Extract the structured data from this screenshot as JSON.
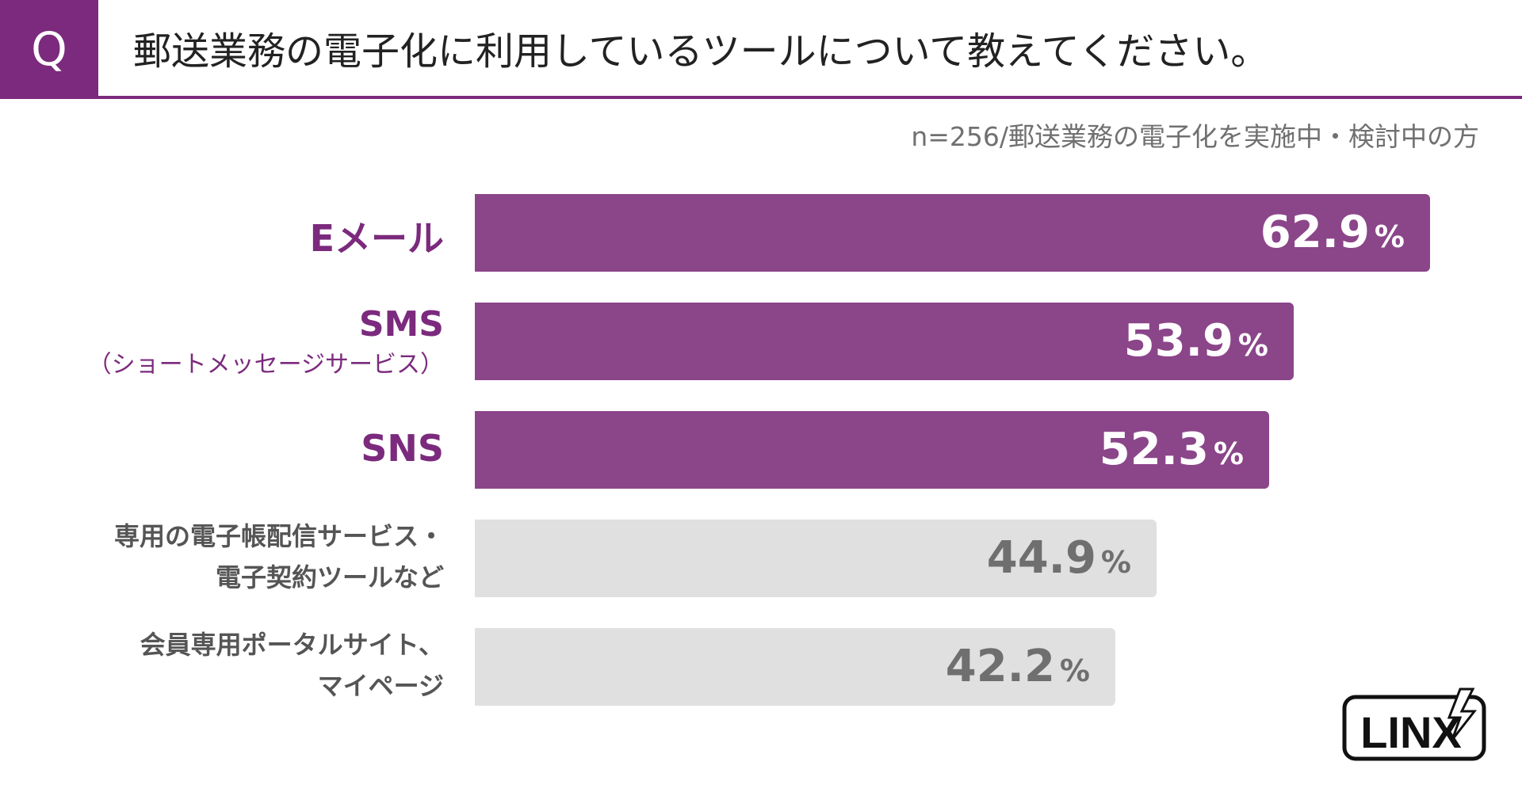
{
  "header": {
    "badge": "Q",
    "question": "郵送業務の電子化に利用しているツールについて教えてください。",
    "sample_note": "n=256/郵送業務の電子化を実施中・検討中の方"
  },
  "colors": {
    "accent": "#7b2a7d",
    "bar_highlight": "#8b4589",
    "bar_muted": "#e0e0e0",
    "label_highlight": "#7b2a7d",
    "label_muted": "#555555",
    "value_muted": "#6f6f6f"
  },
  "logo": {
    "text": "LINX"
  },
  "chart_data": {
    "type": "bar",
    "orientation": "horizontal",
    "unit": "%",
    "xlim": [
      0,
      100
    ],
    "grid": false,
    "categories": [
      {
        "line1": "Eメール",
        "line2": "",
        "highlight": true
      },
      {
        "line1": "SMS",
        "line2": "（ショートメッセージサービス）",
        "highlight": true
      },
      {
        "line1": "SNS",
        "line2": "",
        "highlight": true
      },
      {
        "line1": "専用の電子帳配信サービス・",
        "line2": "電子契約ツールなど",
        "highlight": false
      },
      {
        "line1": "会員専用ポータルサイト、",
        "line2": "マイページ",
        "highlight": false
      }
    ],
    "values": [
      62.9,
      53.9,
      52.3,
      44.9,
      42.2
    ]
  }
}
